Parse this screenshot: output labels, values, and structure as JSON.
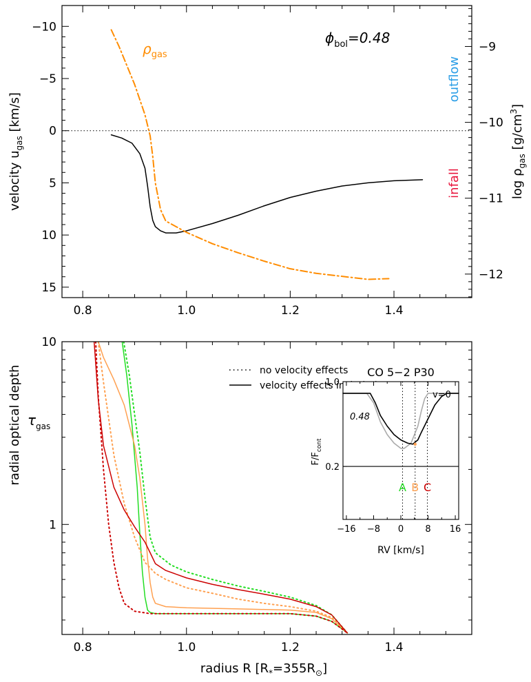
{
  "chart_data": [
    {
      "type": "line",
      "title": "",
      "annotation": {
        "phi": "ϕ",
        "phi_sub": "bol",
        "phi_value": "=0.48"
      },
      "xlabel": "",
      "xlim": [
        0.76,
        1.55
      ],
      "x_ticks": [
        0.8,
        1.0,
        1.2,
        1.4
      ],
      "x_tick_labels": [
        "0.8",
        "1.0",
        "1.2",
        "1.4"
      ],
      "ylabel_left": {
        "main": "velocity  u",
        "sub": "gas",
        "unit": "[km/s]"
      },
      "ylim_left": [
        16.0,
        -12.0
      ],
      "y_ticks_left": [
        -10,
        -5,
        0,
        5,
        10,
        15
      ],
      "y_tick_labels_left": [
        "−10",
        "−5",
        "0",
        "5",
        "10",
        "15"
      ],
      "ylabel_right": {
        "main": "log ρ",
        "sub": "gas",
        "unit": "[g/cm",
        "unit_sup": "3",
        "unit_end": "]"
      },
      "ylim_right": [
        -12.31,
        -8.46
      ],
      "y_ticks_right": [
        -9,
        -10,
        -11,
        -12
      ],
      "y_tick_labels_right": [
        "−9",
        "−10",
        "−11",
        "−12"
      ],
      "labels": {
        "outflow": "outflow",
        "infall": "infall",
        "rho": "ρ",
        "rho_sub": "gas"
      },
      "colors": {
        "velocity": "#000000",
        "density": "#ff8c00",
        "outflow": "#2c9ee6",
        "infall": "#e8143c"
      },
      "series": [
        {
          "name": "u gas",
          "axis": "left",
          "style": "solid",
          "x": [
            0.855,
            0.875,
            0.895,
            0.91,
            0.92,
            0.925,
            0.93,
            0.935,
            0.94,
            0.95,
            0.96,
            0.98,
            1.0,
            1.05,
            1.1,
            1.15,
            1.2,
            1.25,
            1.3,
            1.35,
            1.4,
            1.455
          ],
          "y": [
            0.4,
            0.7,
            1.2,
            2.2,
            3.6,
            5.3,
            7.3,
            8.6,
            9.2,
            9.6,
            9.8,
            9.8,
            9.6,
            8.9,
            8.1,
            7.2,
            6.4,
            5.8,
            5.3,
            5.0,
            4.8,
            4.7
          ]
        },
        {
          "name": "ρ gas",
          "axis": "right",
          "style": "dashdot",
          "x": [
            0.855,
            0.87,
            0.885,
            0.9,
            0.91,
            0.92,
            0.93,
            0.935,
            0.94,
            0.95,
            0.96,
            1.0,
            1.05,
            1.1,
            1.15,
            1.2,
            1.25,
            1.3,
            1.35,
            1.39
          ],
          "y": [
            -8.78,
            -9.0,
            -9.25,
            -9.5,
            -9.7,
            -9.9,
            -10.18,
            -10.45,
            -10.8,
            -11.15,
            -11.3,
            -11.45,
            -11.6,
            -11.72,
            -11.83,
            -11.93,
            -11.99,
            -12.03,
            -12.07,
            -12.06
          ]
        }
      ],
      "reference_line": {
        "y": 0,
        "style": "dotted"
      }
    },
    {
      "type": "line",
      "title": "",
      "xlabel": {
        "main": "radius R",
        "unit_open": "[R",
        "unit_sub": "*",
        "unit_mid": "=355R",
        "unit_sub2": "⊙",
        "unit_close": "]"
      },
      "xlim": [
        0.76,
        1.55
      ],
      "x_ticks": [
        0.8,
        1.0,
        1.2,
        1.4
      ],
      "x_tick_labels": [
        "0.8",
        "1.0",
        "1.2",
        "1.4"
      ],
      "ylabel": {
        "main": "radial optical depth",
        "tau": "τ",
        "tau_sub": "gas"
      },
      "yscale": "log",
      "ylim": [
        0.25,
        10
      ],
      "y_ticks": [
        1,
        10
      ],
      "y_tick_labels": [
        "1",
        "10"
      ],
      "legend": {
        "position": "top-center",
        "entries": [
          {
            "label": "no velocity effects",
            "style": "dotted"
          },
          {
            "label": "velocity effects included",
            "style": "solid"
          }
        ]
      },
      "series": [
        {
          "name": "A",
          "color": "#22dd22",
          "style": "dotted",
          "x": [
            0.879,
            0.89,
            0.9,
            0.91,
            0.92,
            0.93,
            0.94,
            0.97,
            1.0,
            1.05,
            1.1,
            1.15,
            1.2,
            1.25,
            1.28,
            1.31
          ],
          "y": [
            10,
            6.5,
            4.0,
            2.5,
            1.4,
            0.85,
            0.7,
            0.6,
            0.55,
            0.5,
            0.46,
            0.43,
            0.4,
            0.36,
            0.32,
            0.255
          ]
        },
        {
          "name": "A",
          "color": "#22dd22",
          "style": "solid",
          "x": [
            0.876,
            0.885,
            0.895,
            0.905,
            0.91,
            0.915,
            0.92,
            0.925,
            0.93,
            0.94,
            1.0,
            1.1,
            1.2,
            1.25,
            1.28,
            1.31
          ],
          "y": [
            10,
            6.5,
            3.5,
            1.6,
            0.9,
            0.55,
            0.4,
            0.34,
            0.33,
            0.325,
            0.325,
            0.325,
            0.325,
            0.315,
            0.295,
            0.255
          ]
        },
        {
          "name": "B",
          "color": "#ffa050",
          "style": "dotted",
          "x": [
            0.83,
            0.84,
            0.85,
            0.86,
            0.88,
            0.9,
            0.92,
            0.94,
            0.96,
            1.0,
            1.05,
            1.1,
            1.15,
            1.2,
            1.25,
            1.28,
            1.31
          ],
          "y": [
            10,
            6.0,
            3.8,
            2.4,
            1.3,
            0.85,
            0.62,
            0.54,
            0.5,
            0.45,
            0.42,
            0.39,
            0.37,
            0.355,
            0.335,
            0.31,
            0.255
          ]
        },
        {
          "name": "B",
          "color": "#ffa050",
          "style": "solid",
          "x": [
            0.83,
            0.84,
            0.86,
            0.88,
            0.9,
            0.91,
            0.92,
            0.925,
            0.93,
            0.935,
            0.94,
            0.96,
            1.0,
            1.1,
            1.2,
            1.25,
            1.28,
            1.31
          ],
          "y": [
            10,
            8.2,
            6.2,
            4.5,
            2.7,
            1.8,
            1.0,
            0.65,
            0.48,
            0.4,
            0.37,
            0.355,
            0.35,
            0.345,
            0.34,
            0.33,
            0.305,
            0.255
          ]
        },
        {
          "name": "C",
          "color": "#cc0000",
          "style": "dotted",
          "x": [
            0.825,
            0.83,
            0.84,
            0.85,
            0.86,
            0.87,
            0.88,
            0.9,
            0.93,
            1.0,
            1.1,
            1.2,
            1.25,
            1.28,
            1.31
          ],
          "y": [
            10,
            5.0,
            2.0,
            1.0,
            0.62,
            0.45,
            0.37,
            0.335,
            0.325,
            0.325,
            0.325,
            0.325,
            0.315,
            0.295,
            0.255
          ]
        },
        {
          "name": "C",
          "color": "#cc0000",
          "style": "solid",
          "x": [
            0.822,
            0.83,
            0.84,
            0.86,
            0.88,
            0.9,
            0.92,
            0.93,
            0.94,
            0.96,
            1.0,
            1.05,
            1.1,
            1.15,
            1.2,
            1.25,
            1.28,
            1.31
          ],
          "y": [
            10,
            4.8,
            2.7,
            1.6,
            1.2,
            0.97,
            0.8,
            0.7,
            0.61,
            0.56,
            0.51,
            0.47,
            0.44,
            0.415,
            0.39,
            0.355,
            0.32,
            0.255
          ]
        }
      ],
      "inset": {
        "type": "line",
        "title": "CO 5−2 P30",
        "annotation": "0.48",
        "v_label": "v=0",
        "xlabel": {
          "main": "RV",
          "unit": "[km/s]"
        },
        "ylabel": {
          "main": "F/F",
          "sub": "cont"
        },
        "xlim": [
          -17,
          17
        ],
        "x_ticks": [
          -16,
          -8,
          0,
          8,
          16
        ],
        "x_tick_labels": [
          "−16",
          "−8",
          "0",
          "8",
          "16"
        ],
        "ylim": [
          -0.3,
          1.0
        ],
        "y_ticks": [
          1.0,
          0.2
        ],
        "y_tick_labels": [
          "1.0",
          "0.2"
        ],
        "continuum_line": 0.2,
        "markers": [
          {
            "label": "A",
            "x": 0.5,
            "color": "#22dd22"
          },
          {
            "label": "B",
            "x": 4.2,
            "color": "#ffa050"
          },
          {
            "label": "C",
            "x": 7.8,
            "color": "#cc0000"
          }
        ],
        "series": [
          {
            "name": "velocity",
            "color": "#000000",
            "x": [
              -17,
              -9,
              -7.5,
              -6,
              -4,
              -2,
              0,
              2,
              3.5,
              5,
              6,
              8,
              10,
              12,
              13.5,
              17
            ],
            "y": [
              0.89,
              0.89,
              0.8,
              0.68,
              0.58,
              0.5,
              0.45,
              0.42,
              0.41,
              0.45,
              0.52,
              0.65,
              0.78,
              0.86,
              0.89,
              0.89
            ]
          },
          {
            "name": "no velocity",
            "color": "#aaaaaa",
            "x": [
              -17,
              -10,
              -8,
              -6,
              -4,
              -2,
              0,
              1,
              3,
              5,
              6,
              7,
              8,
              9,
              17
            ],
            "y": [
              0.89,
              0.89,
              0.8,
              0.62,
              0.5,
              0.42,
              0.37,
              0.37,
              0.42,
              0.58,
              0.72,
              0.84,
              0.89,
              0.89,
              0.89
            ]
          }
        ]
      }
    }
  ]
}
